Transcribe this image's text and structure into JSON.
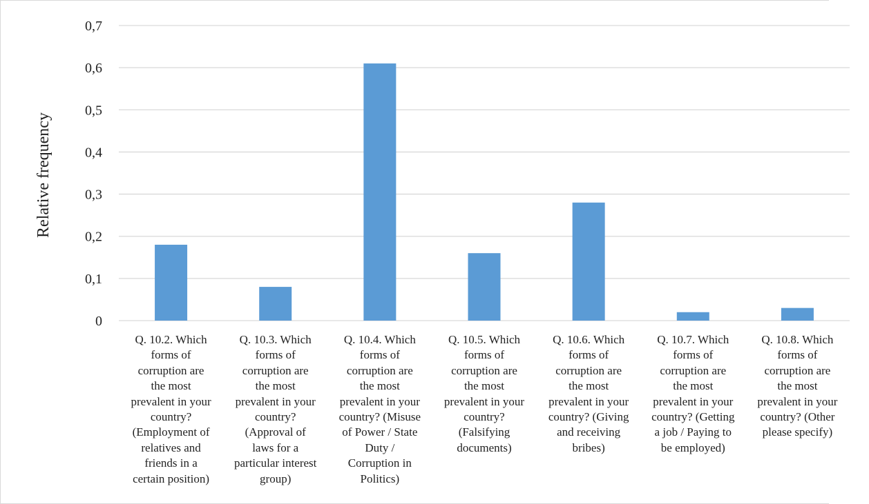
{
  "chart_data": {
    "type": "bar",
    "title": "",
    "xlabel": "",
    "ylabel": "Relative frequency",
    "ylim": [
      0,
      0.7
    ],
    "yticks": [
      "0",
      "0,1",
      "0,2",
      "0,3",
      "0,4",
      "0,5",
      "0,6",
      "0,7"
    ],
    "grid": true,
    "legend": "none",
    "bar_color": "#5b9bd5",
    "grid_color": "#d9d9d9",
    "categories": [
      "Q. 10.2. Which\nforms of\ncorruption are\nthe most\nprevalent in your\ncountry?\n(Employment of\nrelatives and\nfriends in a\ncertain position)",
      "Q. 10.3. Which\nforms of\ncorruption are\nthe most\nprevalent in your\ncountry?\n(Approval of\nlaws for a\nparticular interest\ngroup)",
      "Q. 10.4. Which\nforms of\ncorruption are\nthe most\nprevalent in your\ncountry? (Misuse\nof Power / State\nDuty /\nCorruption in\nPolitics)",
      "Q. 10.5. Which\nforms of\ncorruption are\nthe most\nprevalent in your\ncountry?\n(Falsifying\ndocuments)",
      "Q. 10.6. Which\nforms of\ncorruption are\nthe most\nprevalent in your\ncountry? (Giving\nand receiving\nbribes)",
      "Q. 10.7. Which\nforms of\ncorruption are\nthe most\nprevalent in your\ncountry? (Getting\na job / Paying to\nbe employed)",
      "Q. 10.8. Which\nforms of\ncorruption are\nthe most\nprevalent in your\ncountry? (Other\nplease specify)"
    ],
    "values": [
      0.18,
      0.08,
      0.61,
      0.16,
      0.28,
      0.02,
      0.03
    ]
  }
}
